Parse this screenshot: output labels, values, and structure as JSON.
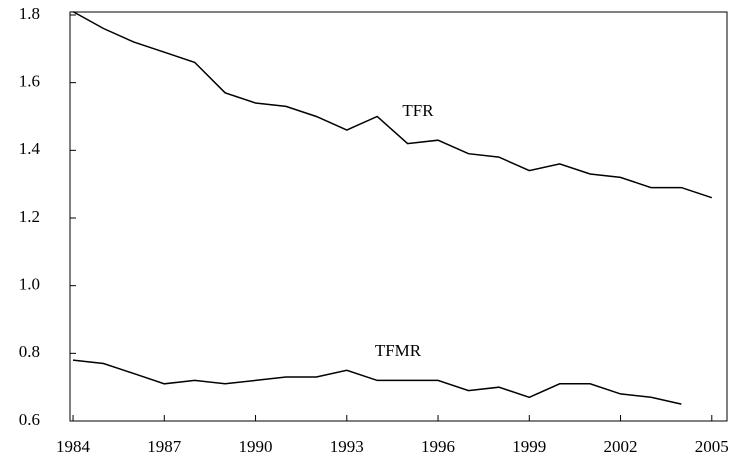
{
  "chart_data": {
    "type": "line",
    "x": [
      1984,
      1985,
      1986,
      1987,
      1988,
      1989,
      1990,
      1991,
      1992,
      1993,
      1994,
      1995,
      1996,
      1997,
      1998,
      1999,
      2000,
      2001,
      2002,
      2003,
      2004,
      2005
    ],
    "series": [
      {
        "name": "TFR",
        "color": "#000000",
        "values": [
          1.81,
          1.76,
          1.72,
          1.69,
          1.66,
          1.57,
          1.54,
          1.53,
          1.5,
          1.46,
          1.5,
          1.42,
          1.43,
          1.39,
          1.38,
          1.34,
          1.36,
          1.33,
          1.32,
          1.29,
          1.29,
          1.26
        ]
      },
      {
        "name": "TFMR",
        "color": "#000000",
        "values": [
          0.78,
          0.77,
          0.74,
          0.71,
          0.72,
          0.71,
          0.72,
          0.73,
          0.73,
          0.75,
          0.72,
          0.72,
          0.72,
          0.69,
          0.7,
          0.67,
          0.71,
          0.71,
          0.68,
          0.67,
          0.65,
          null
        ]
      }
    ],
    "xlim": [
      1983.9,
      2005.5
    ],
    "xticks": [
      1984,
      1987,
      1990,
      1993,
      1996,
      1999,
      2002,
      2005
    ],
    "ylim": [
      0.6,
      1.8
    ],
    "yticks": [
      0.6,
      0.8,
      {
        "value": 1,
        "label": "1.0"
      },
      1.2,
      1.4,
      1.6,
      1.8
    ],
    "grid": false
  }
}
